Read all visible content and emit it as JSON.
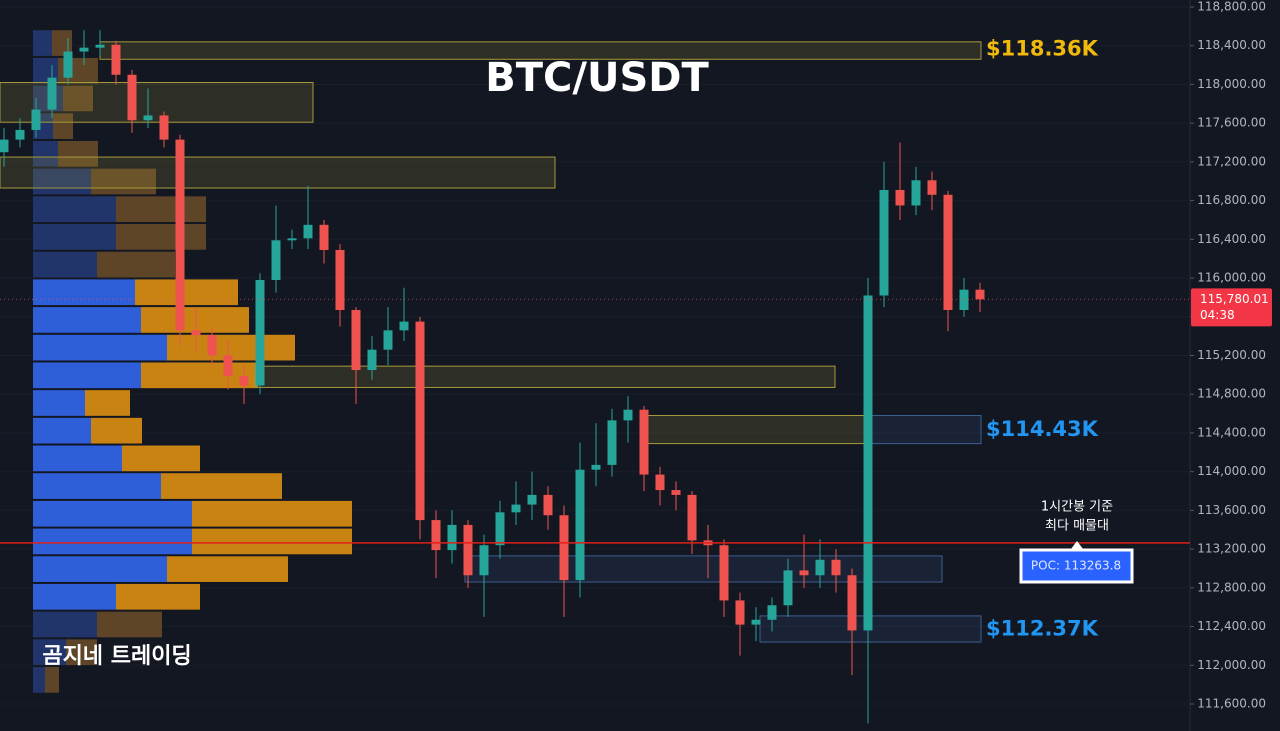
{
  "chart_data": {
    "type": "candlestick",
    "title": "BTC/USDT",
    "watermark": "곰지네 트레이딩",
    "ylim": [
      111600,
      118800
    ],
    "yticks": [
      {
        "value": 111600,
        "label": "111,600.00"
      },
      {
        "value": 112000,
        "label": "112,000.00"
      },
      {
        "value": 112400,
        "label": "112,400.00"
      },
      {
        "value": 112800,
        "label": "112,800.00"
      },
      {
        "value": 113200,
        "label": "113,200.00"
      },
      {
        "value": 113600,
        "label": "113,600.00"
      },
      {
        "value": 114000,
        "label": "114,000.00"
      },
      {
        "value": 114400,
        "label": "114,400.00"
      },
      {
        "value": 114800,
        "label": "114,800.00"
      },
      {
        "value": 115200,
        "label": "115,200.00"
      },
      {
        "value": 115600,
        "label": "115,600.00"
      },
      {
        "value": 116000,
        "label": "116,000.00"
      },
      {
        "value": 116400,
        "label": "116,400.00"
      },
      {
        "value": 116800,
        "label": "116,800.00"
      },
      {
        "value": 117200,
        "label": "117,200.00"
      },
      {
        "value": 117600,
        "label": "117,600.00"
      },
      {
        "value": 118000,
        "label": "118,000.00"
      },
      {
        "value": 118400,
        "label": "118,400.00"
      },
      {
        "value": 118800,
        "label": "118,800.00"
      }
    ],
    "up_color": "#26a69a",
    "down_color": "#ef5350",
    "open": [
      117300,
      117430,
      117530,
      117740,
      118070,
      118340,
      118380,
      118410,
      118100,
      117630,
      117680,
      117430,
      115460,
      115410,
      115200,
      114990,
      114890,
      115980,
      116390,
      116410,
      116550,
      116290,
      115670,
      115050,
      115260,
      115460,
      115550,
      113500,
      113190,
      113450,
      112930,
      113240,
      113580,
      113660,
      113760,
      113550,
      112880,
      114020,
      114070,
      114530,
      114640,
      113970,
      113810,
      113760,
      113290,
      113240,
      112670,
      112420,
      112470,
      112620,
      112980,
      112930,
      113090,
      112930,
      112360,
      115820,
      116910,
      116750,
      117010,
      116860,
      115670,
      115880
    ],
    "high": [
      117550,
      117650,
      117860,
      118200,
      118480,
      118560,
      118560,
      118450,
      118150,
      117960,
      117720,
      117480,
      115700,
      115500,
      115350,
      115100,
      116050,
      116750,
      116500,
      116950,
      116600,
      116350,
      115700,
      115400,
      115700,
      115900,
      115600,
      113600,
      113600,
      113500,
      113350,
      113700,
      113900,
      114000,
      113850,
      113650,
      114300,
      114500,
      114650,
      114780,
      114680,
      114050,
      113900,
      113800,
      113450,
      113300,
      112750,
      112600,
      112700,
      113100,
      113350,
      113300,
      113200,
      113000,
      116000,
      117200,
      117400,
      117150,
      117100,
      116900,
      116000,
      115950
    ],
    "low": [
      117150,
      117350,
      117450,
      117650,
      118000,
      118200,
      118300,
      118000,
      117500,
      117550,
      117350,
      115300,
      115250,
      115100,
      114850,
      114700,
      114800,
      115850,
      116300,
      116300,
      116150,
      115500,
      114700,
      114950,
      115100,
      115350,
      113300,
      112900,
      113050,
      112800,
      112500,
      113100,
      113450,
      113500,
      113400,
      112500,
      112700,
      113850,
      113950,
      114300,
      113800,
      113650,
      113600,
      113150,
      112900,
      112500,
      112100,
      112250,
      112350,
      112500,
      112800,
      112800,
      112750,
      111900,
      111400,
      115700,
      116600,
      116650,
      116700,
      115450,
      115600,
      115650
    ],
    "close": [
      117430,
      117530,
      117740,
      118070,
      118340,
      118380,
      118410,
      118100,
      117630,
      117680,
      117430,
      115460,
      115410,
      115200,
      114990,
      114890,
      115980,
      116390,
      116410,
      116550,
      116290,
      115670,
      115050,
      115260,
      115460,
      115550,
      113500,
      113190,
      113450,
      112930,
      113240,
      113580,
      113660,
      113760,
      113550,
      112880,
      114020,
      114070,
      114530,
      114640,
      113970,
      113810,
      113760,
      113290,
      113240,
      112670,
      112420,
      112470,
      112620,
      112980,
      112930,
      113090,
      112930,
      112360,
      115820,
      116910,
      116750,
      117010,
      116860,
      115670,
      115880,
      115780
    ],
    "profile": {
      "bins": [
        118560,
        118274,
        117988,
        117702,
        117416,
        117130,
        116844,
        116558,
        116272,
        115986,
        115700,
        115414,
        115128,
        114842,
        114556,
        114270,
        113984,
        113698,
        113412,
        113126,
        112840,
        112554,
        112268,
        111982,
        111696
      ],
      "up": [
        19,
        25,
        30,
        20,
        25,
        58,
        83,
        83,
        64,
        102,
        108,
        134,
        108,
        52,
        58,
        89,
        128,
        159,
        159,
        134,
        83,
        64,
        33,
        12
      ],
      "down": [
        20,
        40,
        30,
        20,
        40,
        65,
        90,
        90,
        78,
        103,
        108,
        128,
        117,
        45,
        51,
        78,
        121,
        160,
        160,
        121,
        84,
        65,
        31,
        14
      ],
      "value_area": [
        112554,
        115986
      ],
      "colors": {
        "up": "#2f5fd8",
        "down": "#c98312",
        "up_dim": "#22356a",
        "down_dim": "#5e4528"
      }
    },
    "zones": [
      {
        "top": 118440,
        "bottom": 118260,
        "color": "#a89a3a"
      },
      {
        "top": 118020,
        "bottom": 117610,
        "color": "#a89a3a"
      },
      {
        "top": 117250,
        "bottom": 116930,
        "color": "#a89a3a"
      },
      {
        "top": 115090,
        "bottom": 114870,
        "color": "#a89a3a"
      },
      {
        "top": 114580,
        "bottom": 114290,
        "color": "#a89a3a"
      },
      {
        "top": 114580,
        "bottom": 114290,
        "color": "#3d5f8f"
      },
      {
        "top": 113130,
        "bottom": 112860,
        "color": "#3d5f8f"
      },
      {
        "top": 112510,
        "bottom": 112240,
        "color": "#3d5f8f"
      }
    ],
    "levels": [
      {
        "value": 118360,
        "label": "$118.36K",
        "color": "#f0b90b"
      },
      {
        "value": 114430,
        "label": "$114.43K",
        "color": "#2196f3"
      },
      {
        "value": 112370,
        "label": "$112.37K",
        "color": "#2196f3"
      }
    ],
    "poc": {
      "value": 113263.8,
      "label": "POC: 113263.8"
    },
    "annotation": [
      "1시간봉 기준",
      "최다 매물대"
    ],
    "last": {
      "value": 115780.01,
      "label": "115,780.01"
    },
    "countdown": "04:38"
  }
}
